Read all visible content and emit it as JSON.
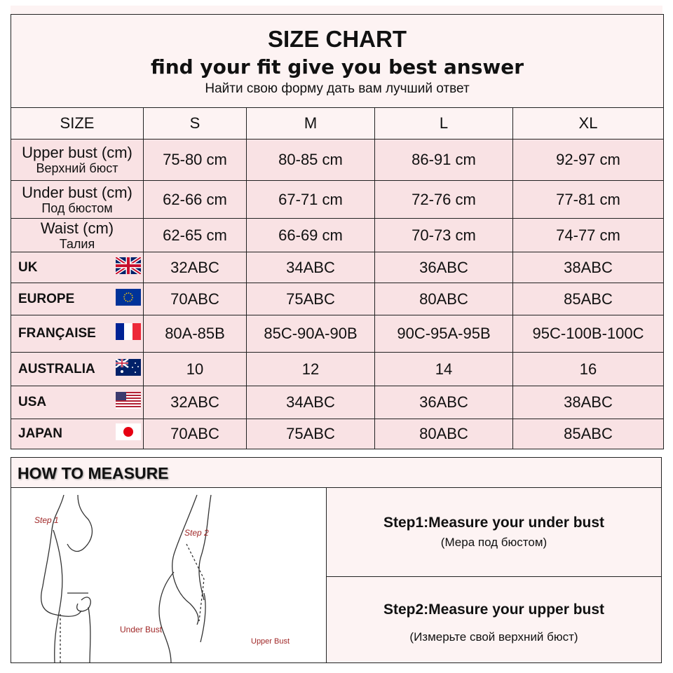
{
  "header": {
    "title": "SIZE CHART",
    "subtitle": "find your fit give you best answer",
    "subtitle_ru": "Найти свою форму дать вам лучший ответ"
  },
  "columns": [
    "SIZE",
    "S",
    "M",
    "L",
    "XL"
  ],
  "measurement_rows": [
    {
      "label": "Upper bust (cm)",
      "label_ru": "Верхний бюст",
      "values": [
        "75-80 cm",
        "80-85 cm",
        "86-91 cm",
        "92-97 cm"
      ]
    },
    {
      "label": "Under bust (cm)",
      "label_ru": "Под бюстом",
      "values": [
        "62-66 cm",
        "67-71 cm",
        "72-76 cm",
        "77-81 cm"
      ]
    },
    {
      "label": "Waist (cm)",
      "label_ru": "Талия",
      "values": [
        "62-65 cm",
        "66-69 cm",
        "70-73 cm",
        "74-77 cm"
      ]
    }
  ],
  "country_rows": [
    {
      "label": "UK",
      "flag": "uk-flag",
      "values": [
        "32ABC",
        "34ABC",
        "36ABC",
        "38ABC"
      ]
    },
    {
      "label": "EUROPE",
      "flag": "eu-flag",
      "values": [
        "70ABC",
        "75ABC",
        "80ABC",
        "85ABC"
      ]
    },
    {
      "label": "FRANÇAISE",
      "flag": "france-flag",
      "values": [
        "80A-85B",
        "85C-90A-90B",
        "90C-95A-95B",
        "95C-100B-100C"
      ]
    },
    {
      "label": "AUSTRALIA",
      "flag": "australia-flag",
      "values": [
        "10",
        "12",
        "14",
        "16"
      ]
    },
    {
      "label": "USA",
      "flag": "usa-flag",
      "values": [
        "32ABC",
        "34ABC",
        "36ABC",
        "38ABC"
      ]
    },
    {
      "label": "JAPAN",
      "flag": "japan-flag",
      "values": [
        "70ABC",
        "75ABC",
        "80ABC",
        "85ABC"
      ]
    }
  ],
  "measure": {
    "heading": "HOW TO MEASURE",
    "illustration": {
      "step1_label": "Step 1",
      "step1_caption": "Under Bust",
      "step2_label": "Step 2",
      "step2_caption": "Upper Bust"
    },
    "steps": [
      {
        "title": "Step1:Measure your under bust",
        "ru": "(Мера под бюстом)"
      },
      {
        "title": "Step2:Measure your upper bust",
        "ru": "(Измерьте свой верхний бюст)"
      }
    ]
  },
  "colors": {
    "header_bg": "#fdf3f3",
    "row_bg": "#f9e2e4",
    "caption_red": "#a02828"
  }
}
